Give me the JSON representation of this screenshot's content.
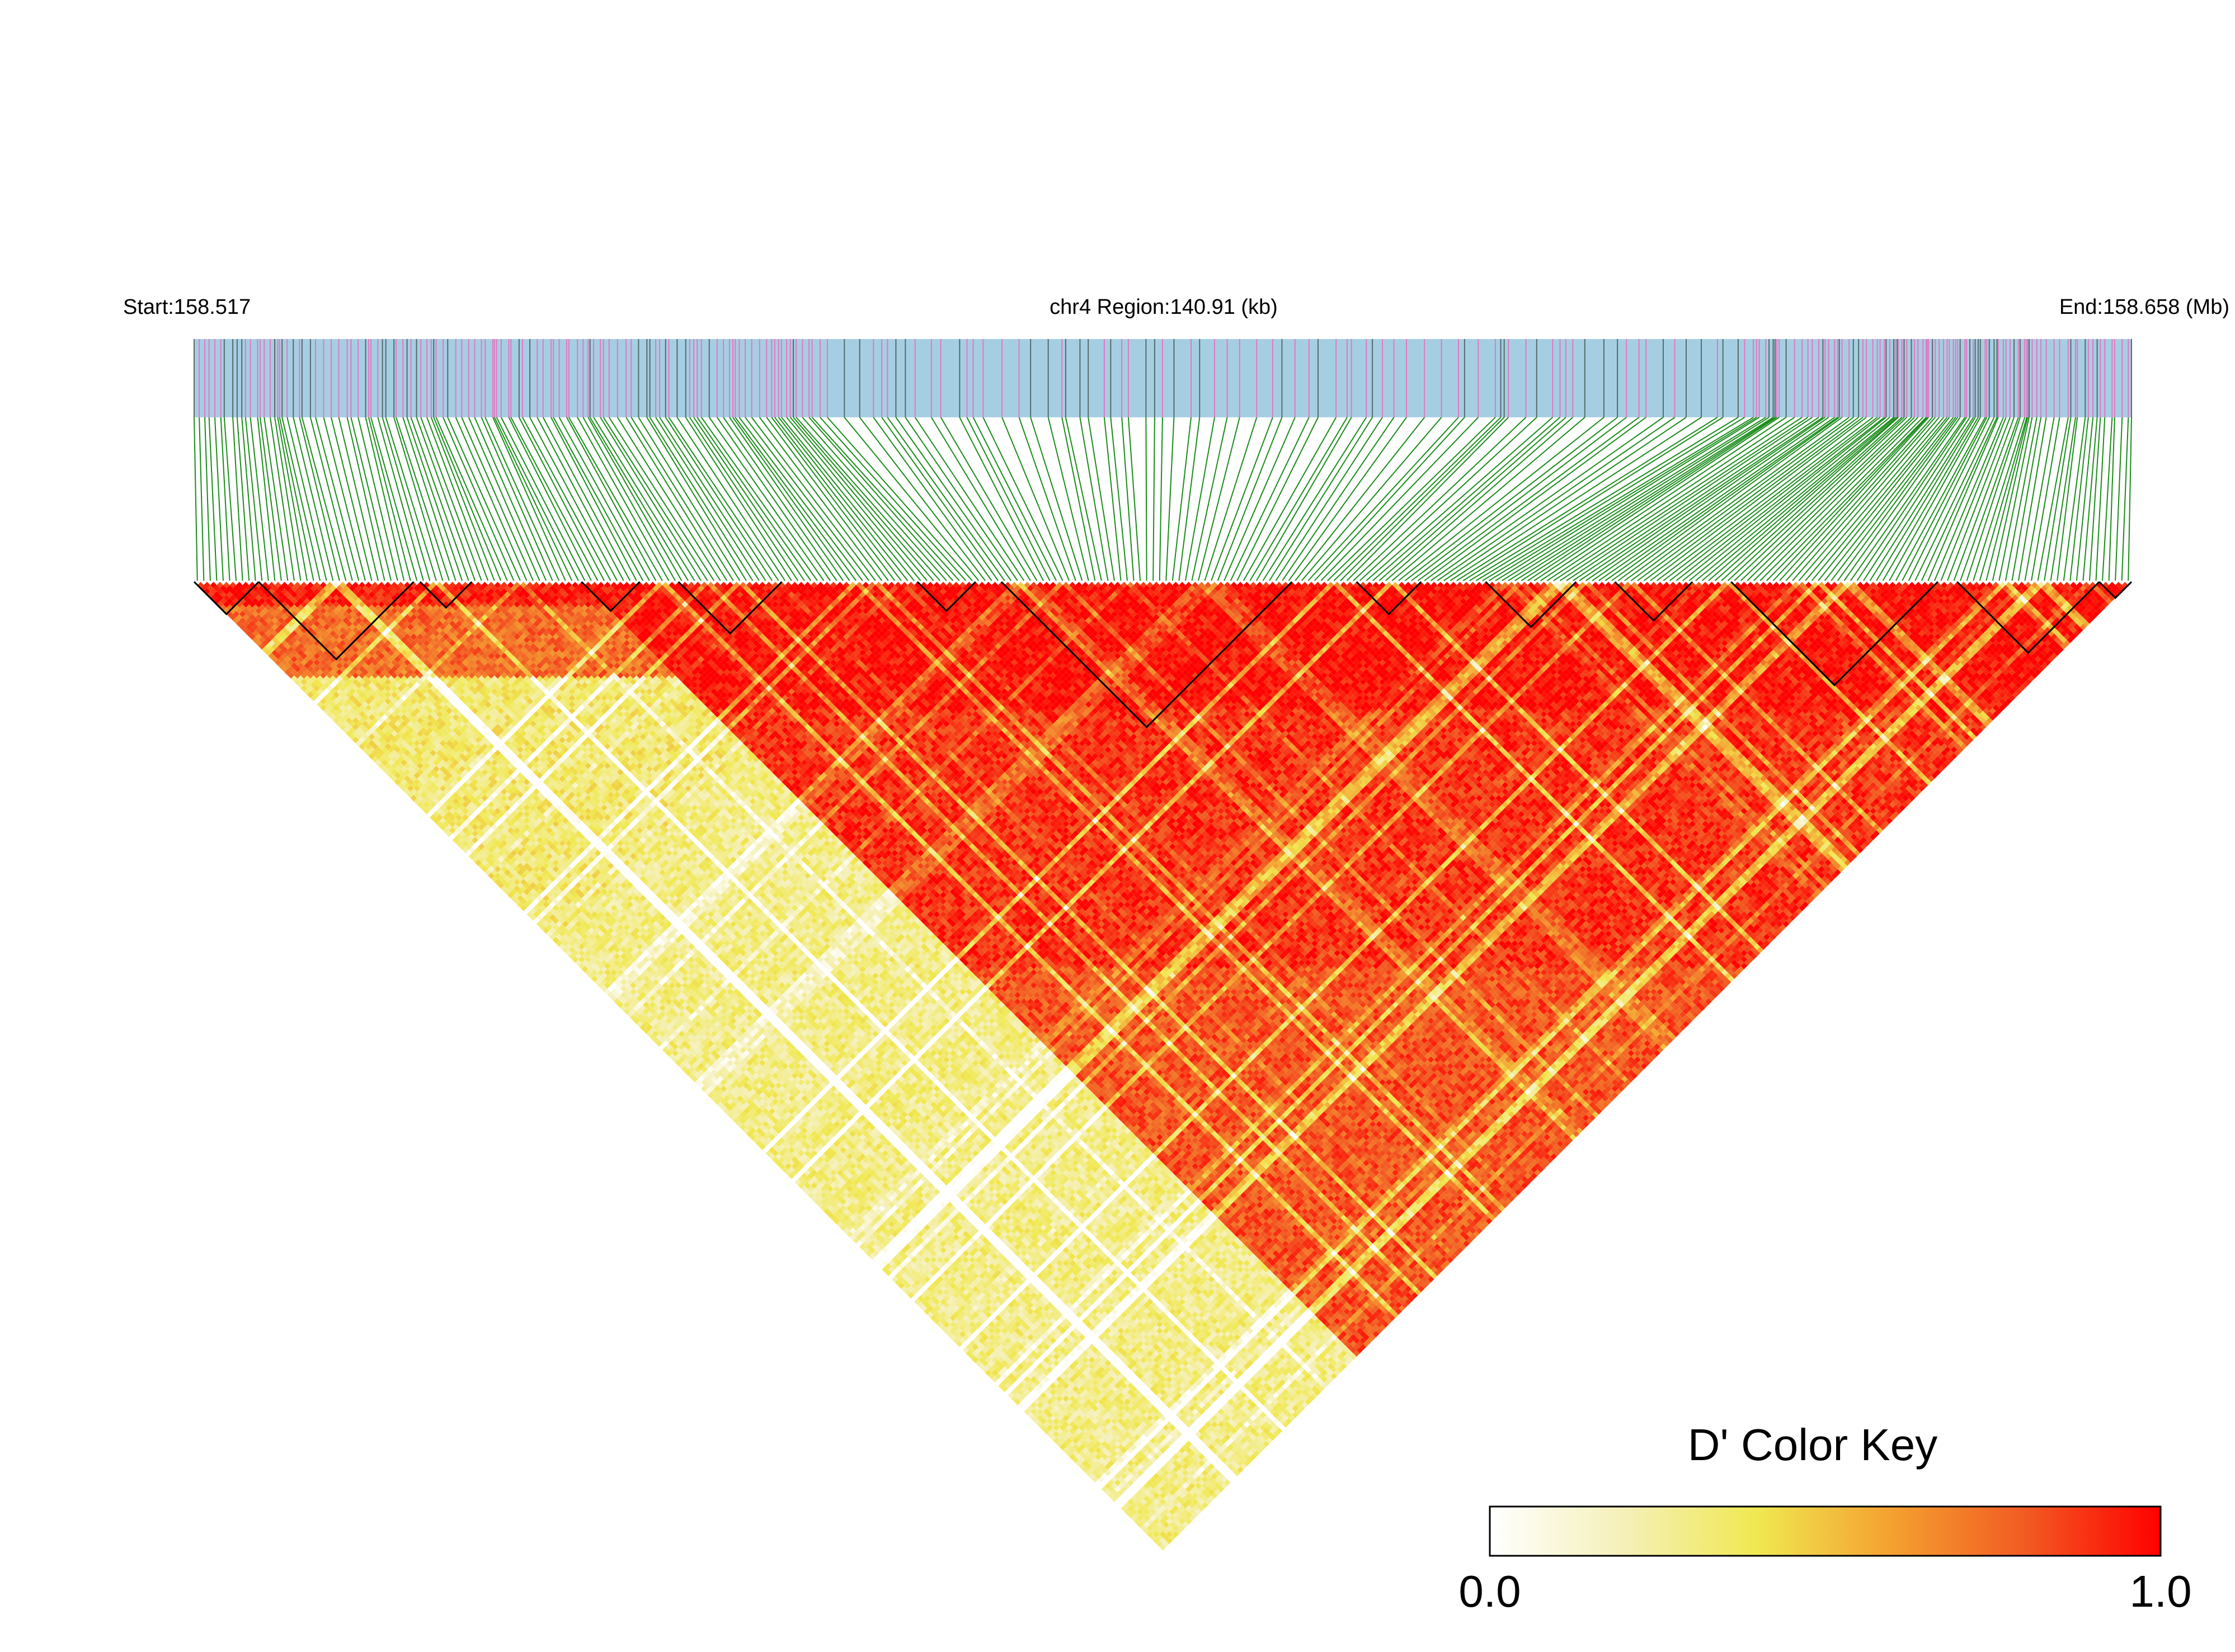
{
  "header": {
    "start_label": "Start:158.517",
    "region_label": "chr4 Region:140.91 (kb)",
    "end_label": "End:158.658 (Mb)"
  },
  "chart_data": {
    "type": "heatmap",
    "chromosome": "chr4",
    "region_start_mb": 158.517,
    "region_end_mb": 158.658,
    "region_length_kb": 140.91,
    "matrix_shape": "triangle (pairwise LD between SNPs)",
    "n_snps_approx": 300,
    "track_colors": {
      "region_bar": "#a6cee3",
      "snp_tick_primary": "#e377c2",
      "snp_tick_secondary": "#556b6b",
      "connector_lines": "#1a8c1a",
      "block_outline": "#000000"
    },
    "ld_pattern_description": "strong D' (red) within blocks along the diagonal; left portion low D' (white/yellow) at long range",
    "color_key": {
      "title": "D' Color Key",
      "min_label": "0.0",
      "max_label": "1.0",
      "min": 0.0,
      "max": 1.0,
      "gradient_stops": [
        "#ffffff",
        "#f5f0b8",
        "#f0e850",
        "#f4a030",
        "#f25a22",
        "#ff0000"
      ]
    }
  }
}
